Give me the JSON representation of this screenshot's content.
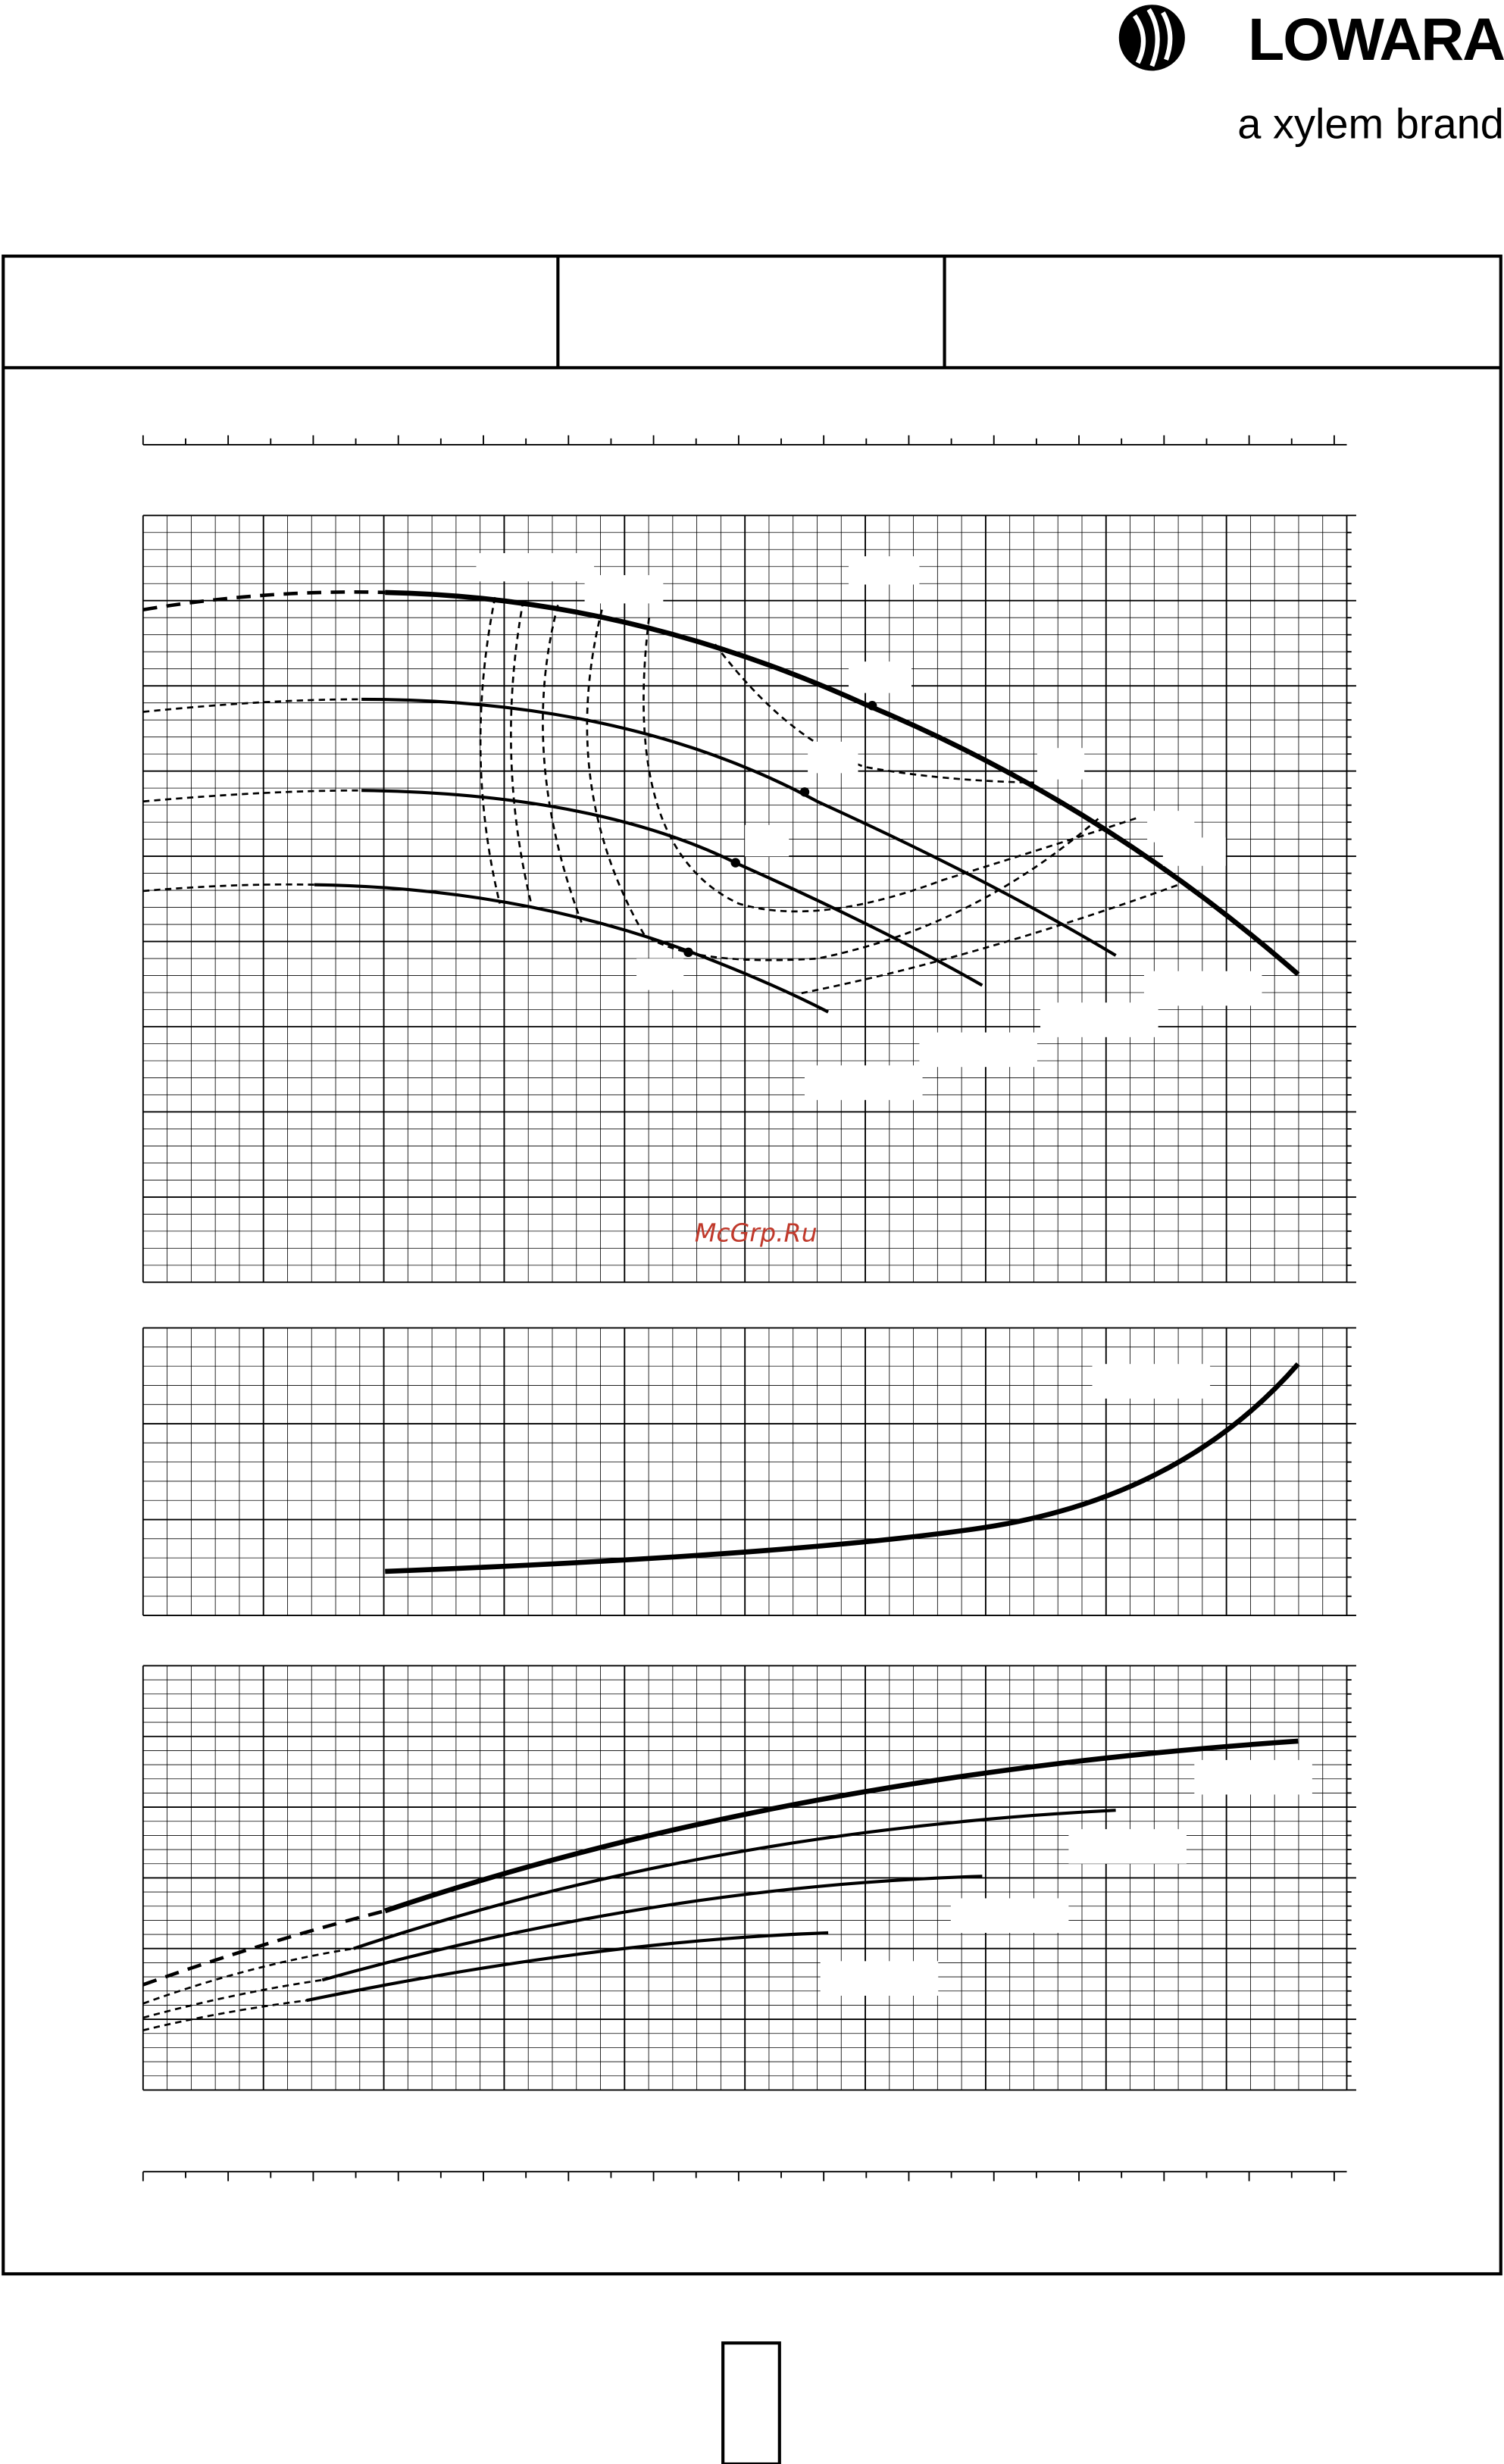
{
  "header": {
    "brand": "LOWARA",
    "tagline": "a xylem brand"
  },
  "watermark": "McGrp.Ru"
}
